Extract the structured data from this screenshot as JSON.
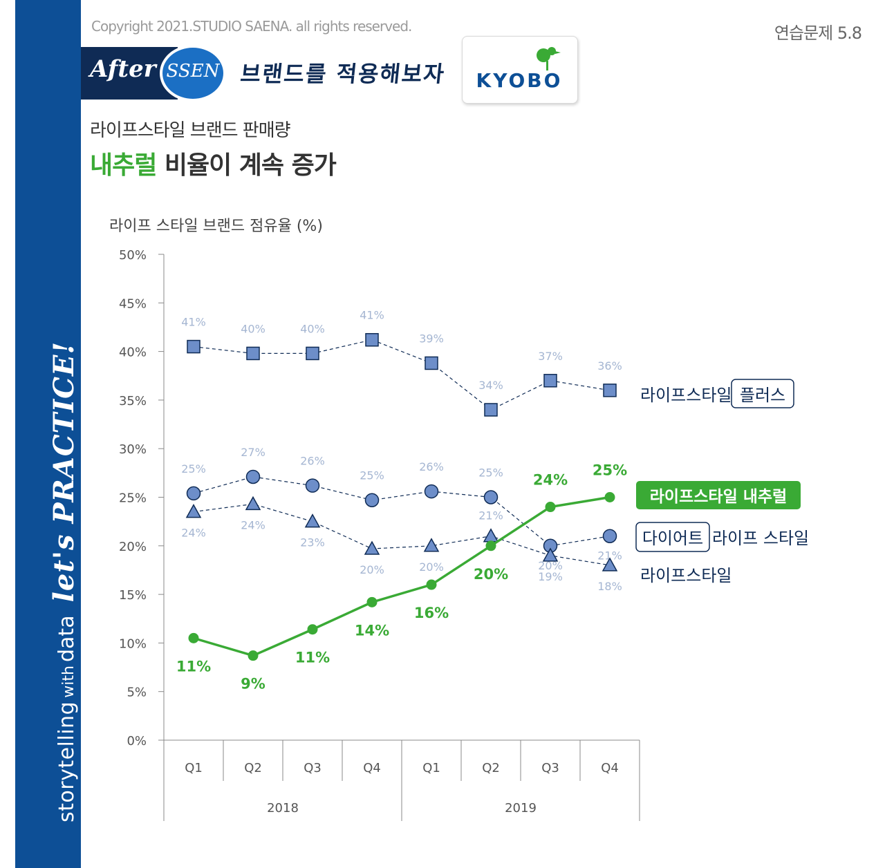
{
  "header": {
    "copyright": "Copyright 2021.STUDIO SAENA. all rights reserved.",
    "exercise": "연습문제 5.8",
    "banner_after": "After",
    "banner_ssen": "SSEN",
    "banner_subtitle": "브랜드를 적용해보자",
    "logo_text": "KYOBO"
  },
  "sidebar": {
    "part1": "storytelling",
    "part2": "with",
    "part3": "data",
    "part4": "let's PRACTICE!"
  },
  "titles": {
    "subtitle": "라이프스타일 브랜드 판매량",
    "headline_highlight": "내추럴",
    "headline_rest": " 비율이 계속 증가"
  },
  "colors": {
    "sidebar": "#0d4f96",
    "highlight": "#3aaa35",
    "series_marker": "#6d8ec9",
    "series_line": "#0f2b55",
    "data_label_gray": "#a5b6d2",
    "axis": "#888888"
  },
  "chart_data": {
    "type": "line",
    "ylabel": "라이프 스타일 브랜드 점유율 (%)",
    "ylim": [
      0,
      50
    ],
    "yticks": [
      "0%",
      "5%",
      "10%",
      "15%",
      "20%",
      "25%",
      "30%",
      "35%",
      "40%",
      "45%",
      "50%"
    ],
    "categories": [
      "Q1",
      "Q2",
      "Q3",
      "Q4",
      "Q1",
      "Q2",
      "Q3",
      "Q4"
    ],
    "years": [
      "2018",
      "2019"
    ],
    "grid": false,
    "series": [
      {
        "key": "plus",
        "name_main": "라이프스타일",
        "name_boxed": "플러스",
        "marker": "square",
        "values": [
          40.5,
          39.8,
          39.8,
          41.2,
          38.8,
          34.0,
          37.0,
          36.0
        ],
        "labels": [
          "41%",
          "40%",
          "40%",
          "41%",
          "39%",
          "34%",
          "37%",
          "36%"
        ]
      },
      {
        "key": "diet",
        "name_boxed": "다이어트",
        "name_main": "라이프 스타일",
        "marker": "circle",
        "values": [
          25.4,
          27.1,
          26.2,
          24.7,
          25.6,
          25.0,
          20.0,
          21.0
        ],
        "labels": [
          "25%",
          "27%",
          "26%",
          "25%",
          "26%",
          "25%",
          "20%",
          "21%"
        ]
      },
      {
        "key": "lifestyle",
        "name_main": "라이프스타일",
        "marker": "triangle",
        "values": [
          23.5,
          24.3,
          22.5,
          19.7,
          20.0,
          21.0,
          19.0,
          18.0
        ],
        "labels": [
          "24%",
          "24%",
          "23%",
          "20%",
          "20%",
          "21%",
          "19%",
          "18%"
        ]
      },
      {
        "key": "natural",
        "name_main": "라이프스타일 내추럴",
        "marker": "dot",
        "highlight": true,
        "values": [
          10.5,
          8.7,
          11.4,
          14.2,
          16.0,
          20.0,
          24.0,
          25.0
        ],
        "labels": [
          "11%",
          "9%",
          "11%",
          "14%",
          "16%",
          "20%",
          "24%",
          "25%"
        ]
      }
    ]
  }
}
